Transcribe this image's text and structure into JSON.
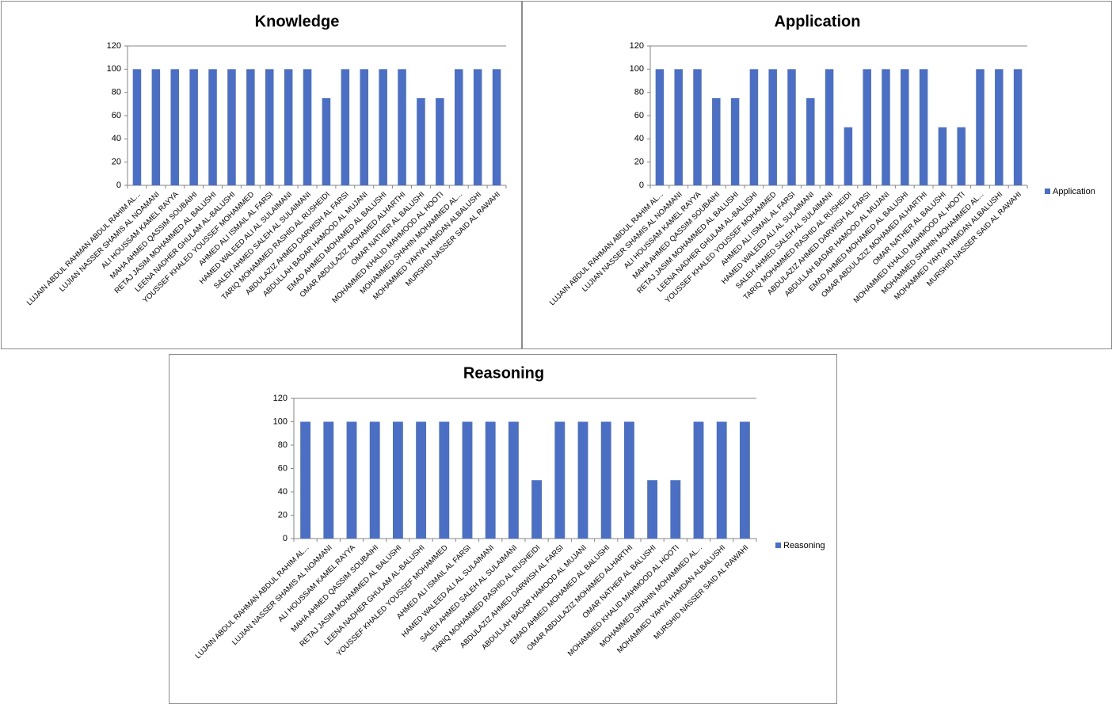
{
  "chart_data": [
    {
      "type": "bar",
      "title": "Knowledge",
      "categories": [
        "LUJAIN ABDUL RAHMAN ABDUL RAHIM AL...",
        "LUJIAN NASSER SHAMIS AL NOAMANI",
        "ALI HOUSSAM KAMEL RAYYA",
        "MAHA AHMED QASSIM SOUBAIHI",
        "RETAJ JASIM MOHAMMED AL BALUSHI",
        "LEENA NADHER GHULAM AL-BALUSHI",
        "YOUSSEF KHALED YOUSSEF MOHAMMED",
        "AHMED ALI ISMAIL AL FARSI",
        "HAMED WALEED ALI AL SULAIMANI",
        "SALEH AHMED SALEH AL SULAIMANI",
        "TARIQ MOHAMMED RASHID AL RUSHEIDI",
        "ABDULAZIZ AHMED DARWISH AL FARSI",
        "ABDULLAH BADAR HAMOOD AL MUJANI",
        "EMAD AHMED MOHAMED AL BALUSHI",
        "OMAR ABDULAZIZ MOHAMED ALHARTHI",
        "OMAR NATHER AL BALUSHI",
        "MOHAMMED KHALID MAHMOOD AL HOOTI",
        "MOHAMMED SHAHIN MOHAMMED AL...",
        "MOHAMMED YAHYA HAMDAN ALBALUSHI",
        "MURSHID NASSER SAID AL RAWAHI"
      ],
      "values": [
        100,
        100,
        100,
        100,
        100,
        100,
        100,
        100,
        100,
        100,
        75,
        100,
        100,
        100,
        100,
        75,
        75,
        100,
        100,
        100
      ],
      "color": "#4a6fc4",
      "ylim": [
        0,
        120
      ],
      "yticks": [
        0,
        20,
        40,
        60,
        80,
        100,
        120
      ],
      "grid": false
    },
    {
      "type": "bar",
      "title": "Application",
      "categories": [
        "LUJAIN ABDUL RAHMAN ABDUL RAHIM AL...",
        "LUJIAN NASSER SHAMIS AL NOAMANI",
        "ALI HOUSSAM KAMEL RAYYA",
        "MAHA AHMED QASSIM SOUBAIHI",
        "RETAJ JASIM MOHAMMED AL BALUSHI",
        "LEENA NADHER GHULAM AL-BALUSHI",
        "YOUSSEF KHALED YOUSSEF MOHAMMED",
        "AHMED ALI ISMAIL AL FARSI",
        "HAMED WALEED ALI AL SULAIMANI",
        "SALEH AHMED SALEH AL SULAIMANI",
        "TARIQ MOHAMMED RASHID AL RUSHEIDI",
        "ABDULAZIZ AHMED DARWISH AL FARSI",
        "ABDULLAH BADAR HAMOOD AL MUJANI",
        "EMAD AHMED MOHAMED AL BALUSHI",
        "OMAR ABDULAZIZ MOHAMED ALHARTHI",
        "OMAR NATHER AL BALUSHI",
        "MOHAMMED KHALID MAHMOOD AL HOOTI",
        "MOHAMMED SHAHIN MOHAMMED AL...",
        "MOHAMMED YAHYA HAMDAN ALBALUSHI",
        "MURSHID NASSER SAID AL RAWAHI"
      ],
      "series": [
        {
          "name": "Application",
          "color": "#4a6fc4",
          "values": [
            100,
            100,
            100,
            75,
            75,
            100,
            100,
            100,
            75,
            100,
            50,
            100,
            100,
            100,
            100,
            50,
            50,
            100,
            100,
            100
          ]
        }
      ],
      "ylim": [
        0,
        120
      ],
      "yticks": [
        0,
        20,
        40,
        60,
        80,
        100,
        120
      ],
      "grid": false,
      "legend": "right"
    },
    {
      "type": "bar",
      "title": "Reasoning",
      "categories": [
        "LUJAIN ABDUL RAHMAN ABDUL RAHIM AL...",
        "LUJIAN NASSER SHAMIS AL NOAMANI",
        "ALI HOUSSAM KAMEL RAYYA",
        "MAHA AHMED QASSIM SOUBAIHI",
        "RETAJ JASIM MOHAMMED AL BALUSHI",
        "LEENA NADHER GHULAM AL-BALUSHI",
        "YOUSSEF KHALED YOUSSEF MOHAMMED",
        "AHMED ALI ISMAIL AL FARSI",
        "HAMED WALEED ALI AL SULAIMANI",
        "SALEH AHMED SALEH AL SULAIMANI",
        "TARIQ MOHAMMED RASHID AL RUSHEIDI",
        "ABDULAZIZ AHMED DARWISH AL FARSI",
        "ABDULLAH BADAR HAMOOD AL MUJANI",
        "EMAD AHMED MOHAMED AL BALUSHI",
        "OMAR ABDULAZIZ MOHAMED ALHARTHI",
        "OMAR NATHER AL BALUSHI",
        "MOHAMMED KHALID MAHMOOD AL HOOTI",
        "MOHAMMED SHAHIN MOHAMMED AL...",
        "MOHAMMED YAHYA HAMDAN ALBALUSHI",
        "MURSHID NASSER SAID AL RAWAHI"
      ],
      "series": [
        {
          "name": "Reasoning",
          "color": "#4a6fc4",
          "values": [
            100,
            100,
            100,
            100,
            100,
            100,
            100,
            100,
            100,
            100,
            50,
            100,
            100,
            100,
            100,
            50,
            50,
            100,
            100,
            100
          ]
        }
      ],
      "ylim": [
        0,
        120
      ],
      "yticks": [
        0,
        20,
        40,
        60,
        80,
        100,
        120
      ],
      "grid": false,
      "legend": "right"
    }
  ]
}
